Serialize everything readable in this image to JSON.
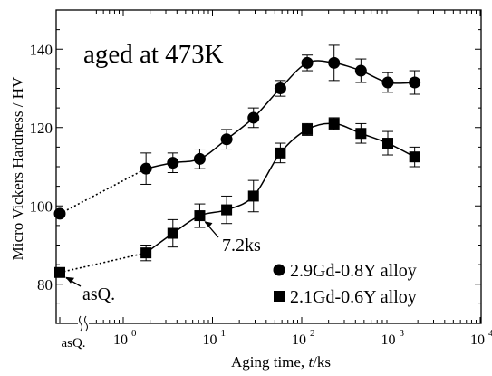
{
  "chart_data": {
    "type": "scatter",
    "title": "aged at 473K",
    "xlabel": {
      "prefix": "Aging time, ",
      "italic": "t",
      "suffix": "/ks"
    },
    "ylabel": "Micro Vickers Hardness / HV",
    "xscale": "log",
    "xlim": [
      1,
      10000
    ],
    "ylim": [
      70,
      150
    ],
    "y_ticks": [
      80,
      100,
      120,
      140
    ],
    "x_ticks": [
      {
        "value": 1,
        "base": "10",
        "exp": "0"
      },
      {
        "value": 10,
        "base": "10",
        "exp": "1"
      },
      {
        "value": 100,
        "base": "10",
        "exp": "2"
      },
      {
        "value": 1000,
        "base": "10",
        "exp": "3"
      },
      {
        "value": 10000,
        "base": "10",
        "exp": "4"
      }
    ],
    "asq_tick_label": "asQ.",
    "legend_position": "bottom-right",
    "series": [
      {
        "name": "2.9Gd-0.8Y alloy",
        "marker": "circle",
        "asq_value": 98,
        "x": [
          1.8,
          3.6,
          7.2,
          14.4,
          28.8,
          57.6,
          115.2,
          230.4,
          460.8,
          921.6,
          1843.2
        ],
        "y": [
          109.5,
          111,
          112,
          117,
          122.5,
          130,
          136.5,
          136.5,
          134.5,
          131.5,
          131.5
        ],
        "err": [
          4,
          2.5,
          2.5,
          2.5,
          2.5,
          2,
          2,
          4.5,
          3,
          2.5,
          3
        ]
      },
      {
        "name": "2.1Gd-0.6Y alloy",
        "marker": "square",
        "asq_value": 83,
        "x": [
          1.8,
          3.6,
          7.2,
          14.4,
          28.8,
          57.6,
          115.2,
          230.4,
          460.8,
          921.6,
          1843.2
        ],
        "y": [
          88,
          93,
          97.5,
          99,
          102.5,
          113.5,
          119.5,
          121,
          118.5,
          116,
          112.5
        ],
        "err": [
          2,
          3.5,
          3,
          3.5,
          4,
          2.5,
          1.5,
          1.5,
          2.5,
          3,
          2.5
        ]
      }
    ],
    "annotations": [
      {
        "text": "7.2ks",
        "series": 1,
        "point": 2
      },
      {
        "text": "asQ.",
        "series": 1,
        "point": "asq"
      }
    ]
  }
}
